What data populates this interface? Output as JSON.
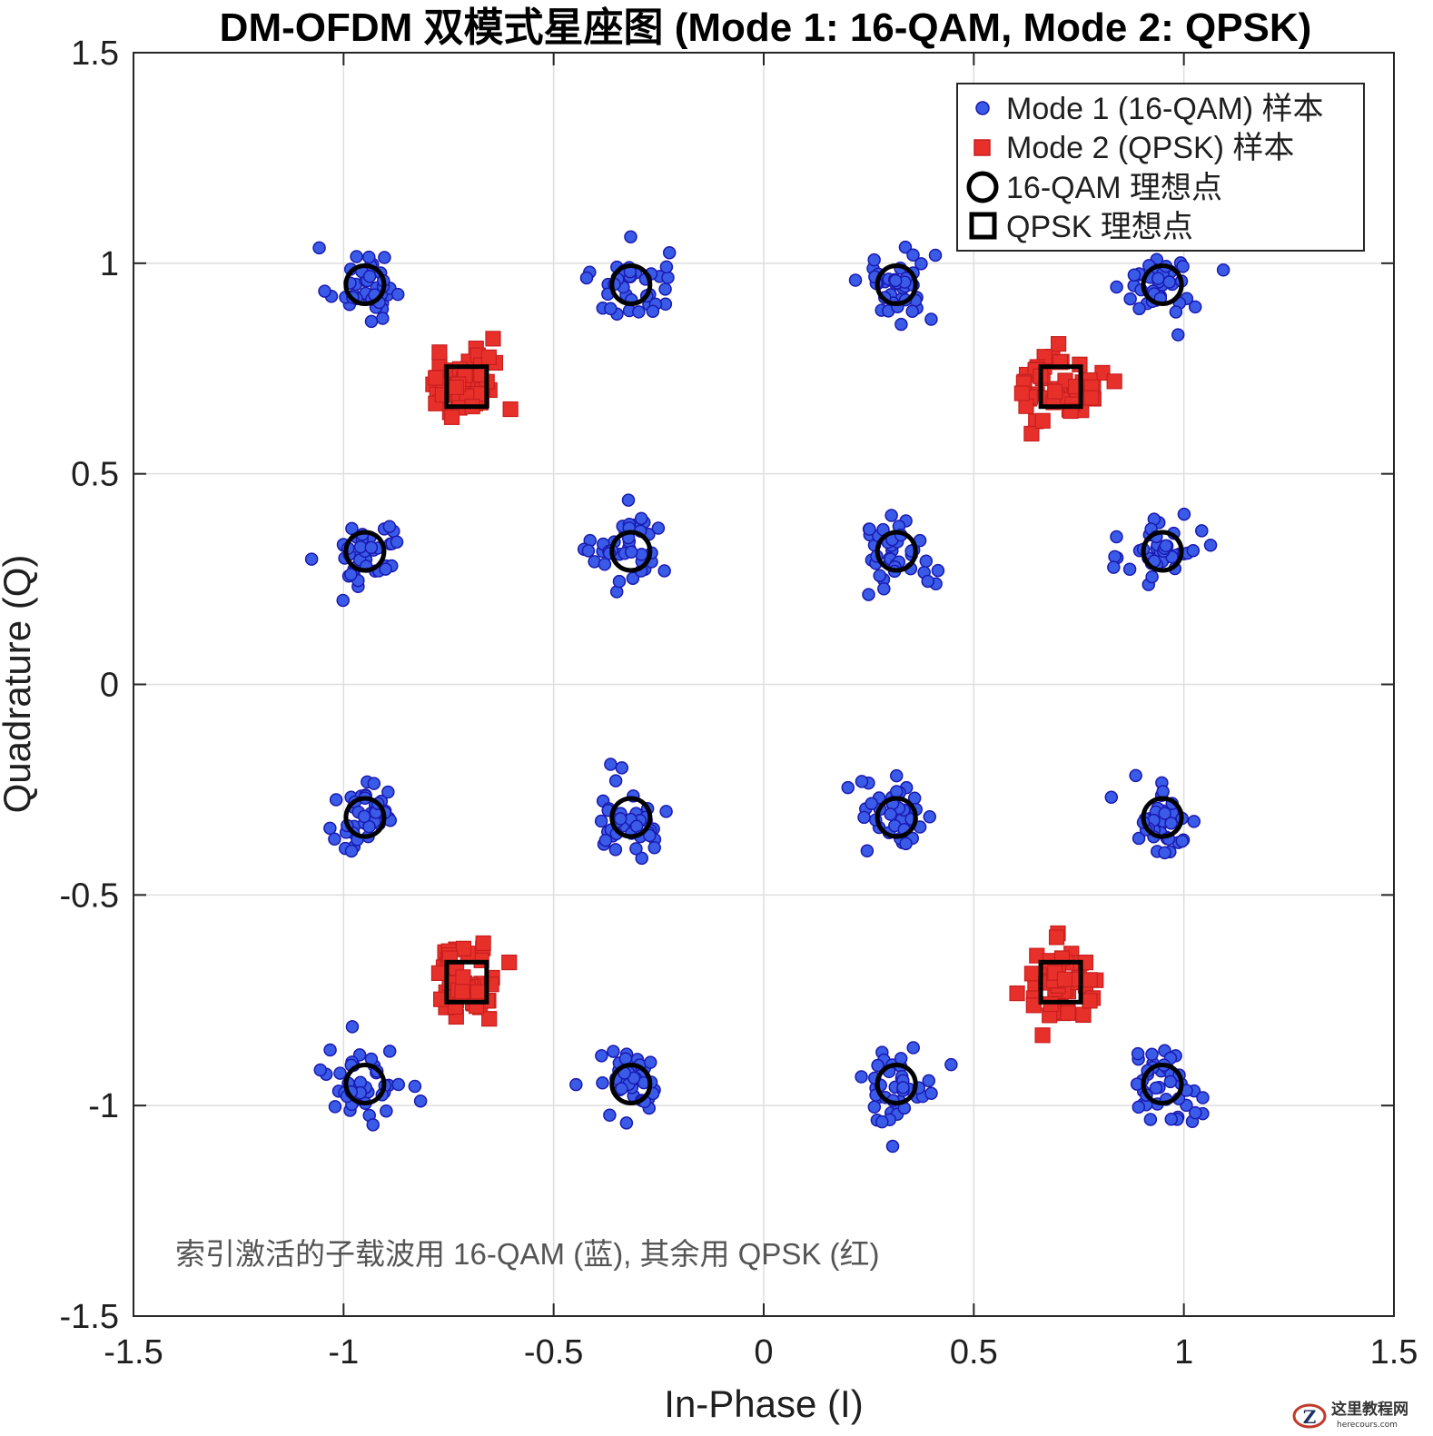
{
  "colors": {
    "mode1_fill": "#3a5ae8",
    "mode1_edge": "#1a1ab0",
    "mode2_fill": "#e8302b",
    "mode2_edge": "#c81e1e",
    "ideal_edge": "#000000",
    "axis": "#262626"
  },
  "chart_data": {
    "type": "scatter",
    "title": "DM-OFDM 双模式星座图 (Mode 1: 16-QAM, Mode 2: QPSK)",
    "xlabel": "In-Phase (I)",
    "ylabel": "Quadrature (Q)",
    "xlim": [
      -1.5,
      1.5
    ],
    "ylim": [
      -1.5,
      1.5
    ],
    "xticks": [
      -1.5,
      -1,
      -0.5,
      0,
      0.5,
      1,
      1.5
    ],
    "yticks": [
      -1.5,
      -1,
      -0.5,
      0,
      0.5,
      1,
      1.5
    ],
    "xtick_labels": [
      "-1.5",
      "-1",
      "-0.5",
      "0",
      "0.5",
      "1",
      "1.5"
    ],
    "ytick_labels": [
      "-1.5",
      "-1",
      "-0.5",
      "0",
      "0.5",
      "1",
      "1.5"
    ],
    "grid": true,
    "legend_position": "top-right",
    "legend": [
      "Mode 1 (16-QAM) 样本",
      "Mode 2 (QPSK) 样本",
      "16-QAM 理想点",
      "QPSK 理想点"
    ],
    "annotation": "索引激活的子载波用 16-QAM (蓝), 其余用 QPSK (红)",
    "series": [
      {
        "name": "Mode 1 (16-QAM) 样本",
        "marker": "circle",
        "cluster_centers": [
          [
            -0.949,
            0.949
          ],
          [
            -0.316,
            0.949
          ],
          [
            0.316,
            0.949
          ],
          [
            0.949,
            0.949
          ],
          [
            -0.949,
            0.316
          ],
          [
            -0.316,
            0.316
          ],
          [
            0.316,
            0.316
          ],
          [
            0.949,
            0.316
          ],
          [
            -0.949,
            -0.316
          ],
          [
            -0.316,
            -0.316
          ],
          [
            0.316,
            -0.316
          ],
          [
            0.949,
            -0.316
          ],
          [
            -0.949,
            -0.949
          ],
          [
            -0.316,
            -0.949
          ],
          [
            0.316,
            -0.949
          ],
          [
            0.949,
            -0.949
          ]
        ],
        "samples_per_cluster": 40,
        "noise_std": 0.045
      },
      {
        "name": "Mode 2 (QPSK) 样本",
        "marker": "square",
        "cluster_centers": [
          [
            -0.707,
            0.707
          ],
          [
            0.707,
            0.707
          ],
          [
            -0.707,
            -0.707
          ],
          [
            0.707,
            -0.707
          ]
        ],
        "samples_per_cluster": 50,
        "noise_std": 0.045
      },
      {
        "name": "16-QAM 理想点",
        "marker": "open-circle",
        "points": [
          [
            -0.949,
            0.949
          ],
          [
            -0.316,
            0.949
          ],
          [
            0.316,
            0.949
          ],
          [
            0.949,
            0.949
          ],
          [
            -0.949,
            0.316
          ],
          [
            -0.316,
            0.316
          ],
          [
            0.316,
            0.316
          ],
          [
            0.949,
            0.316
          ],
          [
            -0.949,
            -0.316
          ],
          [
            -0.316,
            -0.316
          ],
          [
            0.316,
            -0.316
          ],
          [
            0.949,
            -0.316
          ],
          [
            -0.949,
            -0.949
          ],
          [
            -0.316,
            -0.949
          ],
          [
            0.316,
            -0.949
          ],
          [
            0.949,
            -0.949
          ]
        ]
      },
      {
        "name": "QPSK 理想点",
        "marker": "open-square",
        "points": [
          [
            -0.707,
            0.707
          ],
          [
            0.707,
            0.707
          ],
          [
            -0.707,
            -0.707
          ],
          [
            0.707,
            -0.707
          ]
        ]
      }
    ]
  },
  "watermark": {
    "title": "这里教程网",
    "url": "herecours.com"
  }
}
